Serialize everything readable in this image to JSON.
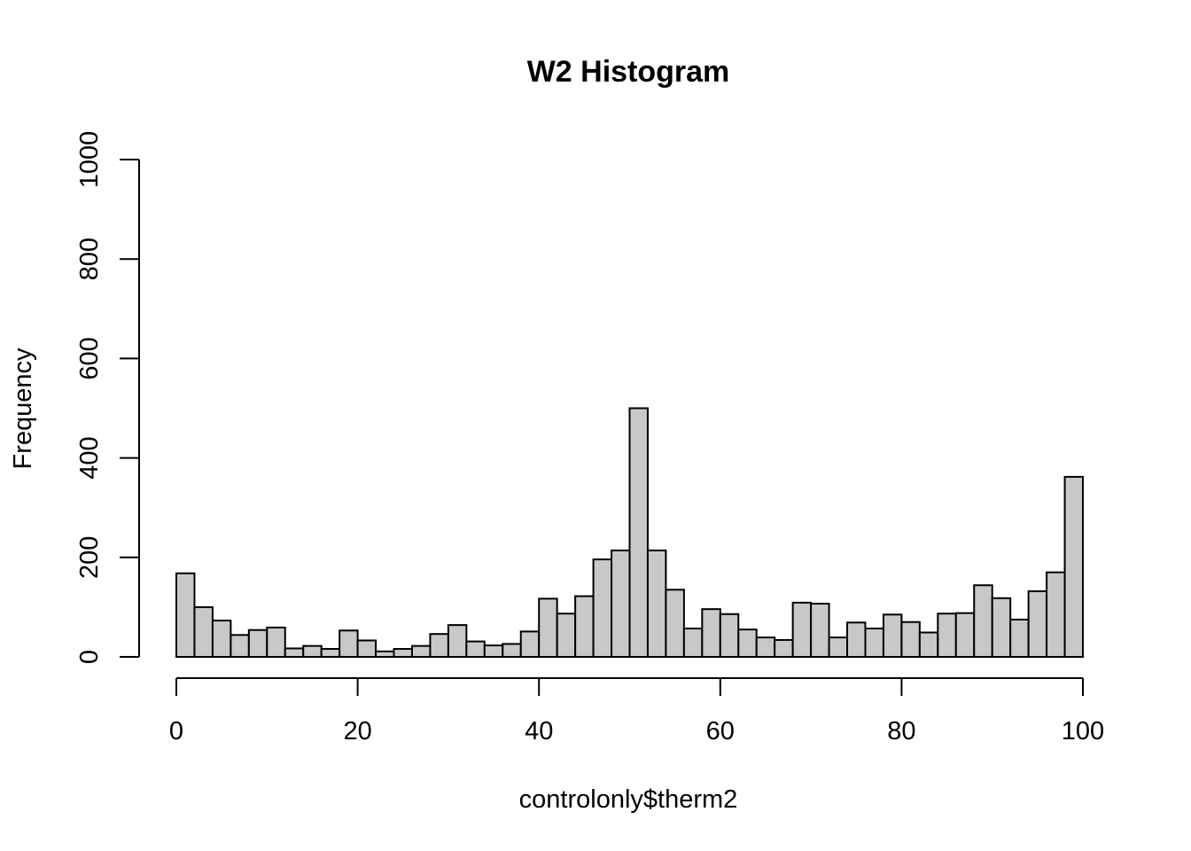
{
  "chart_data": {
    "type": "bar",
    "title": "W2 Histogram",
    "xlabel": "controlonly$therm2",
    "ylabel": "Frequency",
    "xlim": [
      0,
      100
    ],
    "ylim": [
      0,
      1000
    ],
    "x_ticks": [
      "0",
      "20",
      "40",
      "60",
      "80",
      "100"
    ],
    "y_ticks": [
      "0",
      "200",
      "400",
      "600",
      "800",
      "1000"
    ],
    "bin_width": 2,
    "bin_start": 0,
    "values": [
      168,
      100,
      73,
      44,
      54,
      59,
      17,
      22,
      16,
      53,
      33,
      11,
      16,
      22,
      46,
      64,
      31,
      23,
      26,
      51,
      117,
      87,
      122,
      196,
      214,
      500,
      214,
      135,
      57,
      96,
      86,
      55,
      39,
      34,
      109,
      107,
      39,
      69,
      57,
      85,
      70,
      49,
      87,
      88,
      144,
      118,
      75,
      132,
      170,
      362
    ],
    "bar_color": "#c8c8c8",
    "grid": false
  }
}
